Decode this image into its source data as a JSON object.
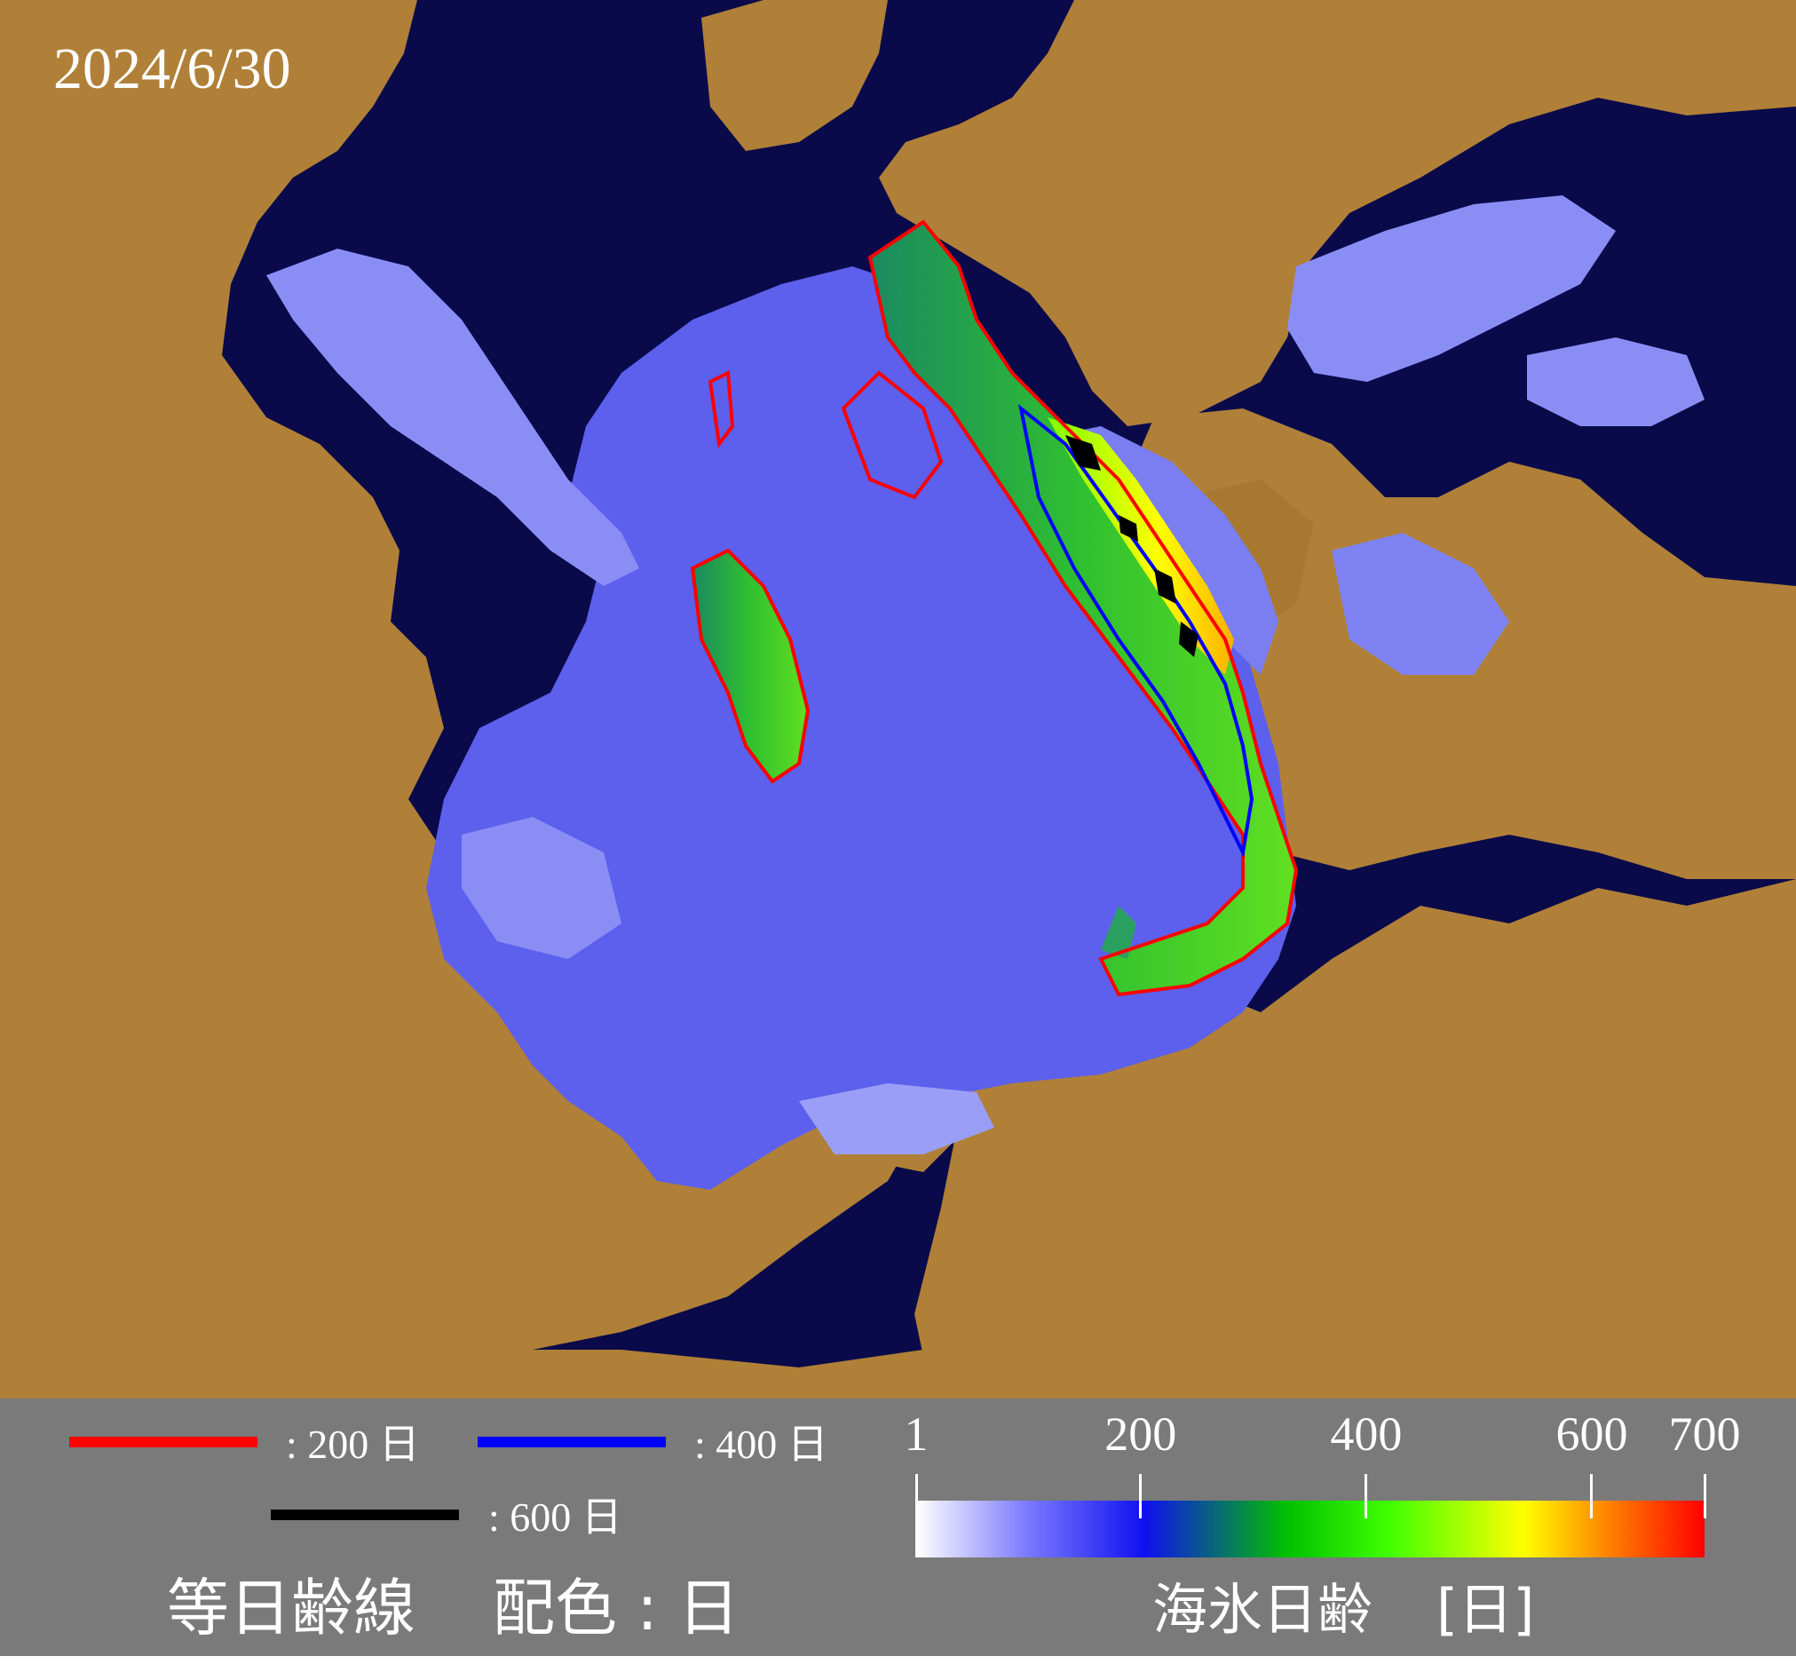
{
  "map": {
    "date": "2024/6/30",
    "colors": {
      "ocean": "#0a0a4a",
      "land": "#b08038",
      "young_ice": "#6a6ef0",
      "contour_200": "#ff0000",
      "contour_400": "#0000ff",
      "contour_600": "#000000"
    }
  },
  "legend": {
    "isolines": [
      {
        "label": ": 200 日",
        "color": "#ff0000",
        "days": 200
      },
      {
        "label": ": 400 日",
        "color": "#0000ff",
        "days": 400
      },
      {
        "label": ": 600 日",
        "color": "#000000",
        "days": 600
      }
    ],
    "isoline_caption": "等日齢線",
    "color_caption": "配色 : 日",
    "colorbar": {
      "title": "海氷日齢",
      "unit": "[日]",
      "min": 1,
      "max": 700,
      "ticks": [
        {
          "value": 1,
          "label": "1"
        },
        {
          "value": 200,
          "label": "200"
        },
        {
          "value": 400,
          "label": "400"
        },
        {
          "value": 600,
          "label": "600"
        },
        {
          "value": 700,
          "label": "700"
        }
      ]
    }
  }
}
